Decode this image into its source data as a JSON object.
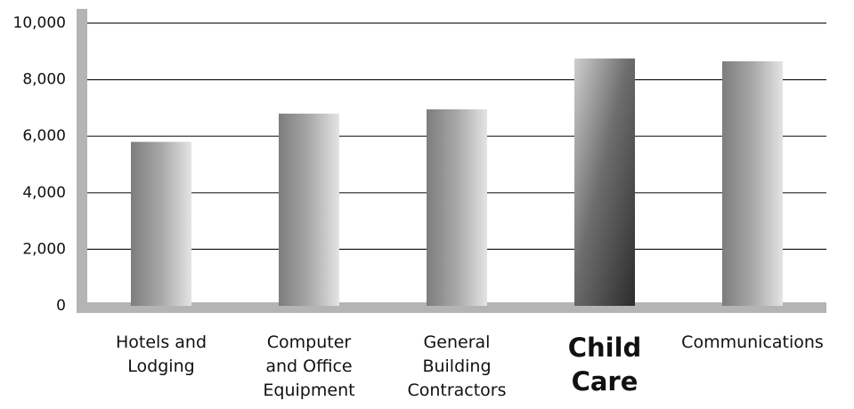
{
  "chart_data": {
    "type": "bar",
    "categories": [
      "Hotels and\nLodging",
      "Computer\nand Office\nEquipment",
      "General\nBuilding\nContractors",
      "Child\nCare",
      "Communications"
    ],
    "values": [
      5800,
      6800,
      6950,
      8750,
      8650
    ],
    "color": "#a8a8a8",
    "highlight_index": 3,
    "ylim": [
      0,
      10000
    ],
    "yticks": [
      0,
      {
        "value": 2000,
        "label": "2,000"
      },
      {
        "value": 4000,
        "label": "4,000"
      },
      {
        "value": 6000,
        "label": "6,000"
      },
      {
        "value": 8000,
        "label": "8,000"
      },
      {
        "value": 10000,
        "label": "10,000"
      }
    ],
    "grid": true
  }
}
